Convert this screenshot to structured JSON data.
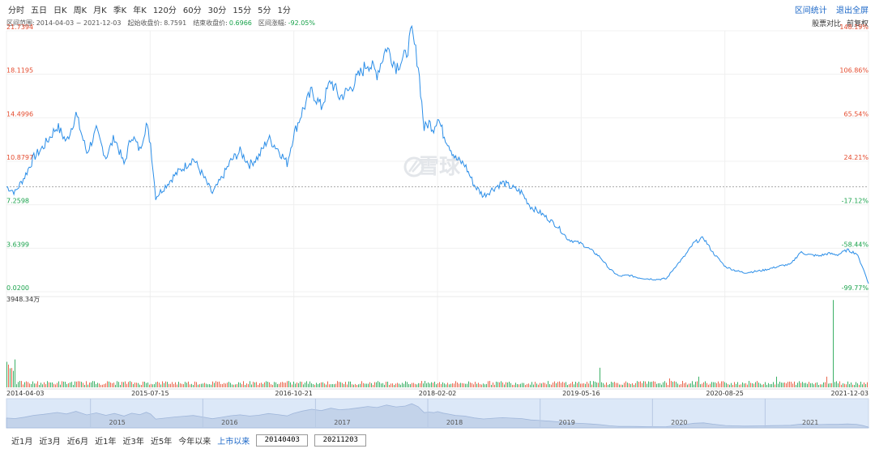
{
  "toolbar": {
    "periods": [
      "分时",
      "五日",
      "日K",
      "周K",
      "月K",
      "季K",
      "年K",
      "120分",
      "60分",
      "30分",
      "15分",
      "5分",
      "1分"
    ],
    "right_links": [
      "区间统计",
      "退出全屏"
    ]
  },
  "infobar": {
    "range_label": "区间范围:",
    "range_value": "2014-04-03 ~ 2021-12-03",
    "start_label": "起始收盘价:",
    "start_value": "8.7591",
    "end_label": "结束收盘价:",
    "end_value": "0.6966",
    "change_label": "区间涨幅:",
    "change_value": "-92.05%"
  },
  "options": [
    "股票对比",
    "前复权"
  ],
  "colors": {
    "line": "#2b8ee8",
    "red": "#e44b2e",
    "green": "#19a24b",
    "link": "#1a66c7",
    "navigator": "#dce8f8"
  },
  "bottom": {
    "ranges": [
      "近1月",
      "近3月",
      "近6月",
      "近1年",
      "近3年",
      "近5年",
      "今年以来",
      "上市以来"
    ],
    "active_range": "上市以来",
    "start_date": "20140403",
    "end_date": "20211203"
  },
  "watermark": "雪球",
  "chart_data": {
    "type": "line",
    "x_start": "2014-04-03",
    "x_end": "2021-12-03",
    "ylim": [
      0.02,
      21.7394
    ],
    "y_ticks_left": [
      "21.7394",
      "18.1195",
      "14.4996",
      "10.8797",
      "7.2598",
      "3.6399",
      "0.0200"
    ],
    "y_ticks_right": [
      "148.19%",
      "106.86%",
      "65.54%",
      "24.21%",
      "-17.12%",
      "-58.44%",
      "-99.77%"
    ],
    "baseline": 8.7591,
    "x_tick_labels": [
      "2014-04-03",
      "2015-07-15",
      "2016-10-21",
      "2018-02-02",
      "2019-05-16",
      "2020-08-25",
      "2021-12-03"
    ],
    "volume_max_label": "3948.34万",
    "navigator_years": [
      "2015",
      "2016",
      "2017",
      "2018",
      "2019",
      "2020",
      "2021"
    ],
    "series": [
      {
        "x": [
          "2014-04-03",
          "2014-05-01",
          "2014-06-01",
          "2014-07-01",
          "2014-08-01",
          "2014-09-15",
          "2014-10-15",
          "2014-11-15",
          "2014-12-20",
          "2015-01-20",
          "2015-02-20",
          "2015-03-20",
          "2015-04-20",
          "2015-05-15",
          "2015-06-10",
          "2015-07-01",
          "2015-07-15",
          "2015-08-01",
          "2015-09-01",
          "2015-10-01",
          "2015-11-01",
          "2015-12-01",
          "2016-01-01",
          "2016-02-01",
          "2016-03-01",
          "2016-04-01",
          "2016-05-01",
          "2016-06-01",
          "2016-07-01",
          "2016-08-01",
          "2016-09-01",
          "2016-10-01",
          "2016-10-21",
          "2016-11-20",
          "2016-12-20",
          "2017-01-20",
          "2017-02-20",
          "2017-03-20",
          "2017-04-20",
          "2017-05-20",
          "2017-06-20",
          "2017-07-20",
          "2017-08-20",
          "2017-09-20",
          "2017-10-20",
          "2017-11-10",
          "2017-12-01",
          "2017-12-20",
          "2018-01-05",
          "2018-01-20",
          "2018-02-02",
          "2018-02-20",
          "2018-03-10",
          "2018-04-01",
          "2018-05-01",
          "2018-06-01",
          "2018-07-01",
          "2018-08-01",
          "2018-09-01",
          "2018-10-01",
          "2018-11-01",
          "2018-12-01",
          "2019-01-01",
          "2019-02-01",
          "2019-03-01",
          "2019-04-01",
          "2019-05-16",
          "2019-06-15",
          "2019-07-15",
          "2019-08-15",
          "2019-09-15",
          "2019-10-15",
          "2019-11-15",
          "2019-12-15",
          "2020-01-15",
          "2020-02-15",
          "2020-03-15",
          "2020-04-15",
          "2020-05-15",
          "2020-06-15",
          "2020-07-15",
          "2020-08-25",
          "2020-09-25",
          "2020-10-25",
          "2020-11-25",
          "2020-12-25",
          "2021-01-25",
          "2021-02-25",
          "2021-03-25",
          "2021-04-25",
          "2021-05-25",
          "2021-06-25",
          "2021-07-25",
          "2021-08-25",
          "2021-09-25",
          "2021-10-25",
          "2021-11-15",
          "2021-12-03"
        ],
        "y": [
          8.76,
          8.3,
          9.6,
          11.2,
          12.1,
          13.8,
          12.5,
          14.8,
          11.6,
          13.4,
          11.2,
          12.9,
          10.6,
          13.1,
          11.8,
          14.0,
          12.4,
          7.9,
          8.8,
          9.7,
          10.4,
          11.1,
          9.7,
          8.2,
          9.4,
          10.9,
          11.7,
          10.6,
          11.3,
          12.8,
          11.9,
          10.7,
          13.0,
          15.1,
          16.7,
          15.4,
          17.6,
          16.2,
          16.8,
          17.9,
          19.1,
          18.2,
          20.4,
          18.8,
          19.6,
          21.6,
          18.9,
          13.6,
          14.1,
          13.6,
          14.6,
          13.2,
          12.3,
          11.1,
          10.6,
          8.9,
          8.0,
          8.6,
          9.1,
          8.7,
          8.3,
          7.1,
          6.6,
          6.0,
          5.4,
          4.4,
          4.0,
          3.5,
          2.9,
          1.9,
          1.3,
          1.4,
          1.2,
          1.1,
          1.05,
          1.1,
          2.1,
          3.0,
          4.1,
          4.5,
          3.3,
          2.1,
          1.8,
          1.6,
          1.7,
          1.8,
          2.0,
          2.2,
          2.3,
          3.3,
          3.1,
          3.0,
          3.2,
          3.1,
          3.5,
          3.2,
          2.0,
          0.7
        ]
      }
    ]
  }
}
